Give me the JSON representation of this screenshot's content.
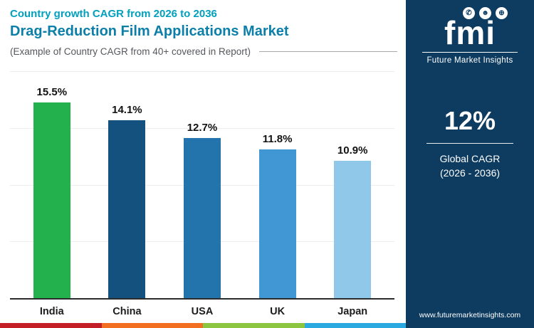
{
  "header": {
    "subtitle": "Country growth CAGR from 2026 to 2036",
    "title": "Drag-Reduction Film Applications Market",
    "note": "(Example of Country CAGR from 40+ covered in Report)"
  },
  "chart_data": {
    "type": "bar",
    "categories": [
      "India",
      "China",
      "USA",
      "UK",
      "Japan"
    ],
    "values": [
      15.5,
      14.1,
      12.7,
      11.8,
      10.9
    ],
    "labels": [
      "15.5%",
      "14.1%",
      "12.7%",
      "11.8%",
      "10.9%"
    ],
    "bar_colors": [
      "#23B14D",
      "#15517F",
      "#2373AC",
      "#4097D3",
      "#90C8EA"
    ],
    "title": "Drag-Reduction Film Applications Market",
    "xlabel": "",
    "ylabel": "",
    "ylim": [
      0,
      18
    ],
    "grid": true,
    "legend": false
  },
  "sidebar": {
    "logo_text": "fmi",
    "logo_name": "Future Market Insights",
    "logo_icons": [
      {
        "name": "headset-icon",
        "glyph": "✆"
      },
      {
        "name": "person-icon",
        "glyph": "☻"
      },
      {
        "name": "globe-icon",
        "glyph": "⊕"
      }
    ],
    "stat_value": "12%",
    "stat_label_line1": "Global CAGR",
    "stat_label_line2": "(2026 - 2036)",
    "website": "www.futuremarketinsights.com"
  },
  "colors": {
    "sidebar_bg": "#0E3C60",
    "accent_teal": "#00A0BE",
    "title_teal": "#0B7FA9",
    "strip": [
      "#C22026",
      "#F26F21",
      "#8CC640",
      "#2AA9E0"
    ]
  }
}
